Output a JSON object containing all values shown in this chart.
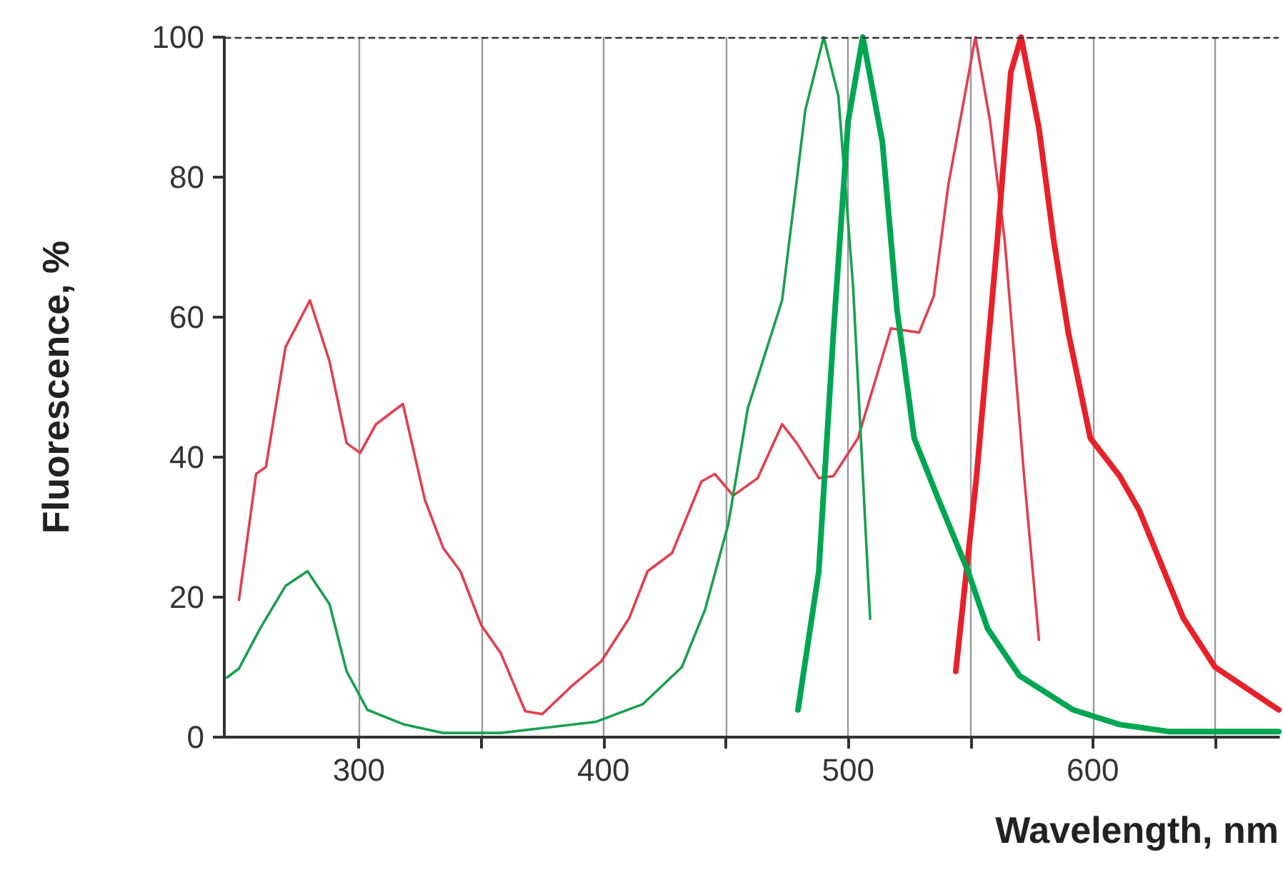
{
  "chart_data": {
    "type": "line",
    "xlabel": "Wavelength, nm",
    "ylabel": "Fluorescence, %",
    "xlim": [
      245,
      676
    ],
    "xticks": [
      300,
      {
        "value": 350,
        "label": null
      },
      400,
      {
        "value": 450,
        "label": null
      },
      500,
      {
        "value": 550,
        "label": null
      },
      600,
      {
        "value": 650,
        "label": null
      }
    ],
    "ylim": [
      0,
      100
    ],
    "yticks": [
      0,
      20,
      40,
      60,
      80,
      100
    ],
    "grid": "x",
    "marker": "none",
    "ref_lines": [
      {
        "axis": "y",
        "value": 100,
        "color": "#333333",
        "line_style": "dashed"
      }
    ],
    "series": [
      {
        "color": "#e04050",
        "x": [
          251,
          258,
          262,
          270,
          280,
          288,
          295,
          300.5,
          307,
          318,
          327,
          334.5,
          341.5,
          350,
          358,
          368,
          375,
          387,
          399,
          410.5,
          418,
          428,
          440,
          445.5,
          453,
          463,
          473,
          479,
          488,
          494,
          504,
          517.5,
          529,
          535,
          541,
          547,
          552,
          558,
          564,
          572,
          578
        ],
        "values": [
          19.6,
          37.6,
          38.6,
          55.7,
          62.4,
          53.7,
          42,
          40.6,
          44.7,
          47.6,
          33.9,
          27,
          23.7,
          16,
          12,
          3.7,
          3.3,
          7.3,
          10.8,
          17,
          23.7,
          26.3,
          36.5,
          37.6,
          34.5,
          37,
          44.7,
          42,
          37,
          37.3,
          42.7,
          58.4,
          57.8,
          63,
          79,
          90.4,
          100,
          88,
          71,
          37,
          13.9
        ]
      },
      {
        "color": "#e8202a",
        "x": [
          544,
          552.5,
          561,
          566.5,
          570.7,
          578,
          584,
          590,
          599,
          611,
          619,
          637,
          650,
          676
        ],
        "values": [
          9.4,
          37.3,
          71,
          95,
          100,
          87,
          71,
          57.8,
          42.7,
          37.3,
          32.4,
          17,
          10,
          3.9
        ]
      },
      {
        "color": "#1aa050",
        "x": [
          246,
          251,
          259.6,
          270,
          279,
          288,
          295,
          303.5,
          318.5,
          334.5,
          358,
          397,
          416,
          432,
          441.5,
          451,
          459,
          473,
          482.5,
          490,
          496,
          502,
          506,
          509
        ],
        "values": [
          8.5,
          9.8,
          15.5,
          21.6,
          23.7,
          19,
          9.4,
          3.9,
          1.8,
          0.6,
          0.6,
          2.2,
          4.7,
          10,
          18.2,
          30.4,
          47,
          62.4,
          89.6,
          100,
          91.6,
          64.5,
          37.3,
          16.9
        ]
      },
      {
        "color": "#00a651",
        "x": [
          479.5,
          488,
          494,
          500,
          506,
          514,
          520,
          527,
          537,
          549,
          557,
          570,
          592,
          611,
          631,
          676
        ],
        "values": [
          3.9,
          23.7,
          57.8,
          88,
          100,
          85,
          61,
          42.7,
          33.9,
          23.7,
          15.5,
          8.8,
          3.9,
          1.8,
          0.8,
          0.8
        ]
      }
    ]
  }
}
